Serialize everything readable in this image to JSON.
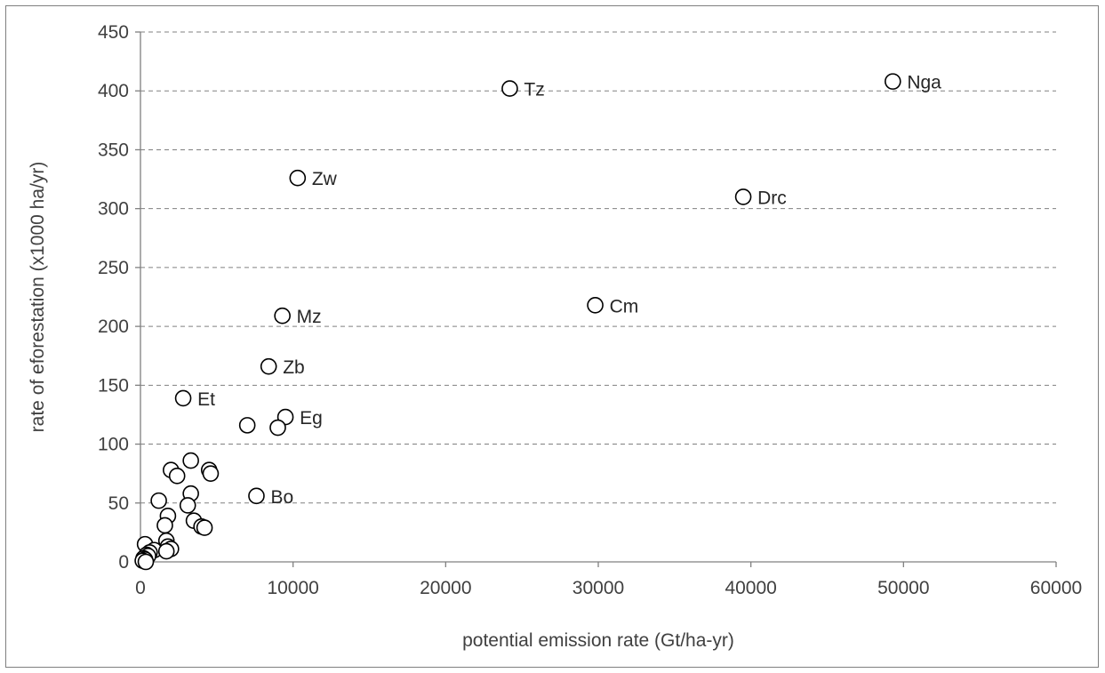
{
  "chart_data": {
    "type": "scatter",
    "title": "",
    "xlabel": "potential emission rate (Gt/ha-yr)",
    "ylabel": "rate of eforestation (x1000 ha/yr)",
    "xlim": [
      0,
      60000
    ],
    "ylim": [
      0,
      450
    ],
    "xticks": [
      0,
      10000,
      20000,
      30000,
      40000,
      50000,
      60000
    ],
    "yticks": [
      0,
      50,
      100,
      150,
      200,
      250,
      300,
      350,
      400,
      450
    ],
    "grid": "horizontal dashed",
    "legend": "none",
    "marker": "open-circle",
    "colors": {
      "marker_stroke": "#000000",
      "grid": "#808080",
      "text": "#404040"
    },
    "series": [
      {
        "points": [
          {
            "x": 49300,
            "y": 408,
            "label": "Nga"
          },
          {
            "x": 24200,
            "y": 402,
            "label": "Tz"
          },
          {
            "x": 10300,
            "y": 326,
            "label": "Zw"
          },
          {
            "x": 39500,
            "y": 310,
            "label": "Drc"
          },
          {
            "x": 29800,
            "y": 218,
            "label": "Cm"
          },
          {
            "x": 9300,
            "y": 209,
            "label": "Mz"
          },
          {
            "x": 8400,
            "y": 166,
            "label": "Zb"
          },
          {
            "x": 2800,
            "y": 139,
            "label": "Et"
          },
          {
            "x": 9500,
            "y": 123,
            "label": "Eg"
          },
          {
            "x": 7600,
            "y": 56,
            "label": "Bo"
          },
          {
            "x": 7000,
            "y": 116
          },
          {
            "x": 9000,
            "y": 114
          },
          {
            "x": 3300,
            "y": 86
          },
          {
            "x": 2000,
            "y": 78
          },
          {
            "x": 4500,
            "y": 78
          },
          {
            "x": 4600,
            "y": 75
          },
          {
            "x": 2400,
            "y": 73
          },
          {
            "x": 3300,
            "y": 58
          },
          {
            "x": 1200,
            "y": 52
          },
          {
            "x": 3100,
            "y": 48
          },
          {
            "x": 1800,
            "y": 39
          },
          {
            "x": 3500,
            "y": 35
          },
          {
            "x": 1600,
            "y": 31
          },
          {
            "x": 4000,
            "y": 30
          },
          {
            "x": 4200,
            "y": 29
          },
          {
            "x": 1700,
            "y": 18
          },
          {
            "x": 300,
            "y": 15
          },
          {
            "x": 1800,
            "y": 13
          },
          {
            "x": 2000,
            "y": 11
          },
          {
            "x": 900,
            "y": 10
          },
          {
            "x": 1700,
            "y": 9
          },
          {
            "x": 600,
            "y": 8
          },
          {
            "x": 400,
            "y": 6
          },
          {
            "x": 500,
            "y": 5
          },
          {
            "x": 200,
            "y": 3
          },
          {
            "x": 300,
            "y": 2
          },
          {
            "x": 150,
            "y": 1
          },
          {
            "x": 350,
            "y": 0
          }
        ]
      }
    ]
  }
}
